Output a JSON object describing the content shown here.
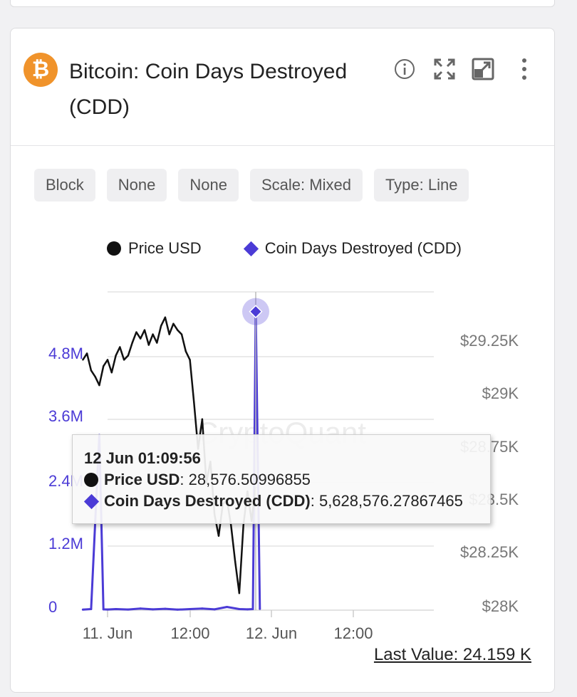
{
  "header": {
    "coin_symbol": "₿",
    "title": "Bitcoin: Coin Days Destroyed (CDD)",
    "icons": [
      "info-icon",
      "fullscreen-icon",
      "open-external-icon",
      "more-vertical-icon"
    ]
  },
  "toolbar": [
    "Block",
    "None",
    "None",
    "Scale: Mixed",
    "Type: Line"
  ],
  "legend": {
    "price": "Price USD",
    "cdd": "Coin Days Destroyed (CDD)"
  },
  "colors": {
    "price": "#111111",
    "cdd": "#4b3bd6",
    "accent": "#f0932b"
  },
  "watermark": "CryptoQuant",
  "tooltip": {
    "time": "12 Jun 01:09:56",
    "price_label": "Price USD",
    "price_value": "28,576.50996855",
    "cdd_label": "Coin Days Destroyed (CDD)",
    "cdd_value": "5,628,576.27867465"
  },
  "last_value": "Last Value: 24.159 K",
  "chart_data": {
    "type": "line",
    "x_ticks": [
      "11. Jun",
      "12:00",
      "12. Jun",
      "12:00"
    ],
    "left_axis": {
      "ticks": [
        "0",
        "1.2M",
        "2.4M",
        "3.6M",
        "4.8M"
      ],
      "range": [
        0,
        6000000
      ]
    },
    "right_axis": {
      "ticks": [
        "$28K",
        "$28.25K",
        "$28.5K",
        "$28.75K",
        "$29K",
        "$29.25K"
      ],
      "range": [
        28000,
        29500
      ]
    },
    "series": [
      {
        "name": "Price USD",
        "axis": "right",
        "values": [
          [
            -6,
            29180
          ],
          [
            -5,
            29210
          ],
          [
            -4,
            29130
          ],
          [
            -3,
            29100
          ],
          [
            -2,
            29060
          ],
          [
            -1,
            29150
          ],
          [
            0,
            29180
          ],
          [
            1,
            29120
          ],
          [
            2,
            29200
          ],
          [
            3,
            29240
          ],
          [
            4,
            29180
          ],
          [
            5,
            29200
          ],
          [
            6,
            29260
          ],
          [
            7,
            29310
          ],
          [
            8,
            29280
          ],
          [
            9,
            29320
          ],
          [
            10,
            29250
          ],
          [
            11,
            29300
          ],
          [
            12,
            29260
          ],
          [
            13,
            29340
          ],
          [
            14,
            29380
          ],
          [
            15,
            29300
          ],
          [
            16,
            29350
          ],
          [
            17,
            29320
          ],
          [
            18,
            29300
          ],
          [
            19,
            29220
          ],
          [
            20,
            29180
          ],
          [
            21,
            28980
          ],
          [
            22,
            28760
          ],
          [
            23,
            28900
          ],
          [
            24,
            28600
          ],
          [
            25,
            28700
          ],
          [
            26,
            28450
          ],
          [
            27,
            28350
          ],
          [
            28,
            28500
          ],
          [
            29,
            28520
          ],
          [
            30,
            28400
          ],
          [
            31,
            28230
          ],
          [
            32,
            28080
          ],
          [
            33,
            28400
          ],
          [
            34,
            28560
          ],
          [
            35,
            28420
          ],
          [
            36,
            28580
          ]
        ]
      },
      {
        "name": "Coin Days Destroyed (CDD)",
        "axis": "left",
        "values": [
          [
            -6,
            10000
          ],
          [
            -4,
            20000
          ],
          [
            -2,
            3300000
          ],
          [
            -1,
            15000
          ],
          [
            0,
            12000
          ],
          [
            2,
            20000
          ],
          [
            5,
            12000
          ],
          [
            8,
            30000
          ],
          [
            11,
            15000
          ],
          [
            14,
            25000
          ],
          [
            17,
            10000
          ],
          [
            20,
            20000
          ],
          [
            23,
            30000
          ],
          [
            26,
            15000
          ],
          [
            29,
            60000
          ],
          [
            32,
            20000
          ],
          [
            34,
            15000
          ],
          [
            35.3,
            20000
          ],
          [
            36,
            5628576
          ],
          [
            37,
            24159
          ]
        ]
      }
    ]
  }
}
